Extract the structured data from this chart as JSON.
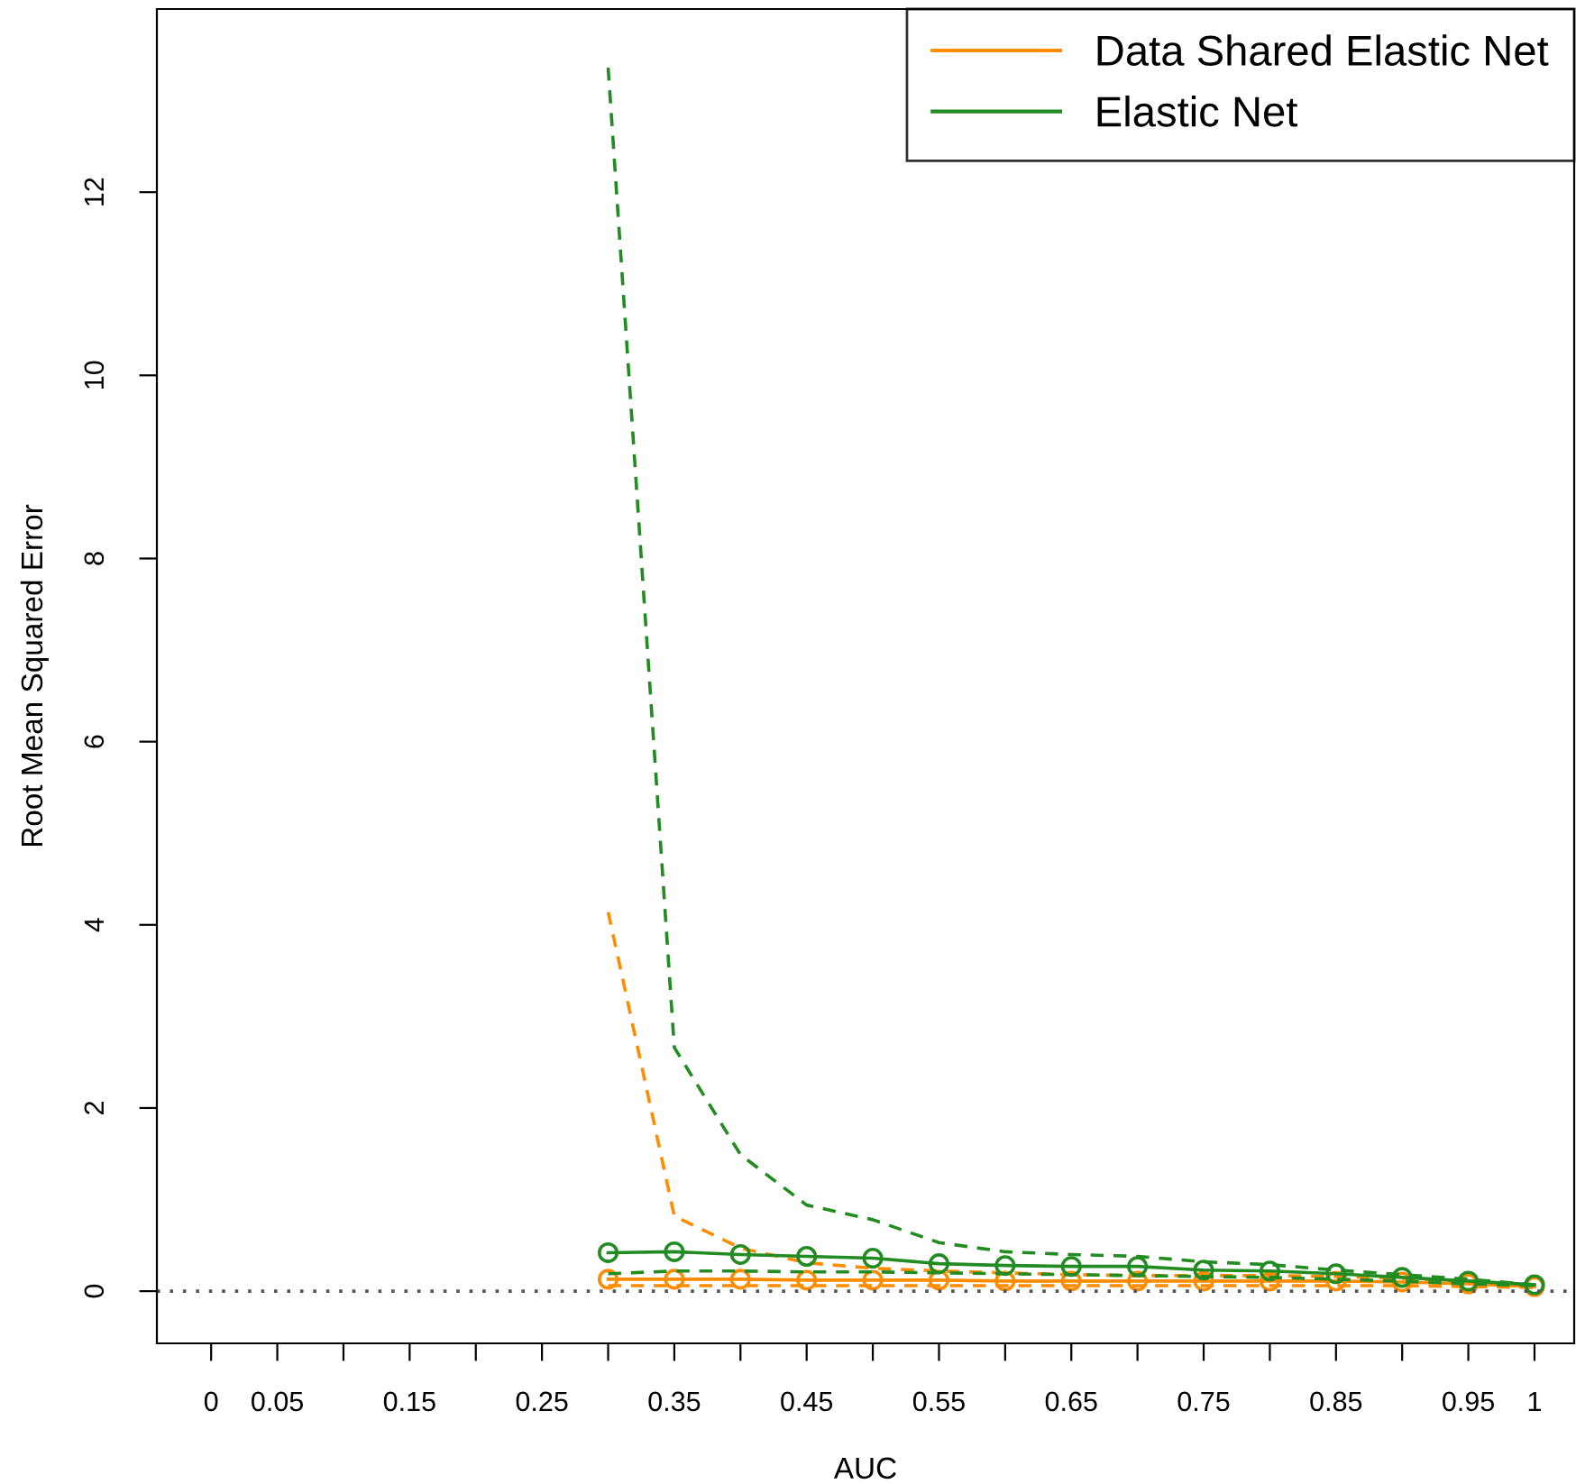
{
  "chart_data": {
    "type": "line",
    "xlabel": "AUC",
    "ylabel": "Root Mean Squared Error",
    "x": [
      0.3,
      0.35,
      0.4,
      0.45,
      0.5,
      0.55,
      0.6,
      0.65,
      0.7,
      0.75,
      0.8,
      0.85,
      0.9,
      0.95,
      1
    ],
    "series": [
      {
        "name": "Data Shared Elastic Net",
        "color": "#ff8c00",
        "marker": "circle",
        "line_style": "solid",
        "values": [
          0.13,
          0.13,
          0.13,
          0.12,
          0.12,
          0.12,
          0.11,
          0.11,
          0.11,
          0.11,
          0.11,
          0.11,
          0.1,
          0.08,
          0.05
        ]
      },
      {
        "color": "#ff8c00",
        "marker": "none",
        "line_style": "dashed",
        "values": [
          4.14,
          0.82,
          0.47,
          0.31,
          0.25,
          0.22,
          0.2,
          0.18,
          0.17,
          0.17,
          0.17,
          0.16,
          0.14,
          0.11,
          0.06
        ]
      },
      {
        "color": "#ff8c00",
        "marker": "none",
        "line_style": "dashed",
        "values": [
          0.06,
          0.06,
          0.06,
          0.06,
          0.06,
          0.06,
          0.06,
          0.06,
          0.06,
          0.06,
          0.06,
          0.06,
          0.06,
          0.05,
          0.04
        ]
      },
      {
        "name": "Elastic Net",
        "color": "#228b22",
        "marker": "circle",
        "line_style": "solid",
        "values": [
          0.42,
          0.43,
          0.4,
          0.38,
          0.36,
          0.3,
          0.28,
          0.27,
          0.27,
          0.23,
          0.22,
          0.19,
          0.15,
          0.11,
          0.07
        ]
      },
      {
        "color": "#228b22",
        "marker": "none",
        "line_style": "dashed",
        "values": [
          13.36,
          2.66,
          1.49,
          0.94,
          0.78,
          0.53,
          0.43,
          0.4,
          0.38,
          0.32,
          0.29,
          0.23,
          0.18,
          0.13,
          0.07
        ]
      },
      {
        "color": "#228b22",
        "marker": "none",
        "line_style": "dashed",
        "values": [
          0.19,
          0.22,
          0.22,
          0.21,
          0.21,
          0.2,
          0.19,
          0.18,
          0.17,
          0.16,
          0.15,
          0.13,
          0.11,
          0.08,
          0.06
        ]
      }
    ],
    "xlim": [
      -0.041,
      1.03
    ],
    "xticks": [
      0,
      0.05,
      {
        "value": 0.1,
        "label": null
      },
      0.15,
      {
        "value": 0.2,
        "label": null
      },
      0.25,
      {
        "value": 0.3,
        "label": null
      },
      0.35,
      {
        "value": 0.4,
        "label": null
      },
      0.45,
      {
        "value": 0.5,
        "label": null
      },
      0.55,
      {
        "value": 0.6,
        "label": null
      },
      0.65,
      {
        "value": 0.7,
        "label": null
      },
      0.75,
      {
        "value": 0.8,
        "label": null
      },
      0.85,
      {
        "value": 0.9,
        "label": null
      },
      0.95,
      1
    ],
    "ylim": [
      -0.57,
      14.0
    ],
    "yticks": [
      0,
      2,
      4,
      6,
      8,
      10,
      12
    ],
    "ref_lines": [
      {
        "axis": "y",
        "value": 0,
        "color": "#555555",
        "line_style": "dotted"
      }
    ],
    "grid": false,
    "legend": "top right"
  }
}
